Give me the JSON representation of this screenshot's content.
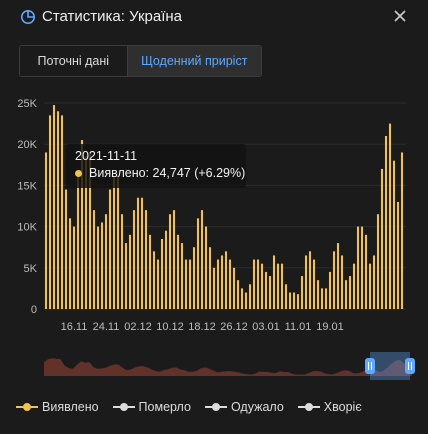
{
  "header": {
    "title": "Статистика: Україна",
    "title_icon": "pie-chart-icon",
    "close_icon": "close-icon"
  },
  "tabs": [
    {
      "label": "Поточні дані",
      "active": false
    },
    {
      "label": "Щоденний приріст",
      "active": true
    }
  ],
  "tooltip": {
    "date": "2021-11-11",
    "text": "Виявлено: 24,747 (+6.29%)"
  },
  "legend": [
    {
      "label": "Виявлено",
      "color": "#f2c14e"
    },
    {
      "label": "Померло",
      "color": "#dcdcdc"
    },
    {
      "label": "Одужало",
      "color": "#dcdcdc"
    },
    {
      "label": "Хворіє",
      "color": "#dcdcdc"
    }
  ],
  "colors": {
    "bar": "#f2c14e",
    "grid": "#2c2c2c",
    "axis_text": "#bdbdbd",
    "accent": "#5ea9ff",
    "navigator_fill": "#7a3a30"
  },
  "chart_data": {
    "type": "bar",
    "series": [
      {
        "name": "Виявлено",
        "values": [
          19000,
          23500,
          24747,
          24000,
          23500,
          14500,
          11000,
          10000,
          16000,
          20500,
          18500,
          19000,
          12000,
          10000,
          10500,
          11500,
          14500,
          16000,
          16000,
          11500,
          8000,
          9000,
          12000,
          13500,
          13500,
          12000,
          9000,
          7000,
          6000,
          8500,
          9500,
          11500,
          12000,
          9000,
          8000,
          6000,
          6000,
          7500,
          11000,
          12000,
          10000,
          7500,
          5000,
          6000,
          6500,
          7000,
          6000,
          5000,
          3500,
          2500,
          2000,
          3000,
          6000,
          6000,
          5500,
          4500,
          4000,
          6500,
          5500,
          5500,
          3000,
          2000,
          2000,
          1800,
          4000,
          6500,
          7000,
          6000,
          3500,
          2500,
          2500,
          4500,
          7000,
          8000,
          6500,
          3500,
          4000,
          5500,
          10000,
          10000,
          9000,
          5500,
          6500,
          11500,
          17000,
          21000,
          22500,
          18000,
          13000,
          19000
        ]
      }
    ],
    "x_start": "2021-11-09",
    "x_tick_labels": [
      "16.11",
      "24.11",
      "02.12",
      "10.12",
      "18.12",
      "26.12",
      "03.01",
      "11.01",
      "19.01"
    ],
    "y_tick_labels": [
      "0",
      "5K",
      "10K",
      "15K",
      "20K",
      "25K"
    ],
    "ylim": [
      0,
      25000
    ],
    "grid": true,
    "legend_position": "bottom-left"
  }
}
